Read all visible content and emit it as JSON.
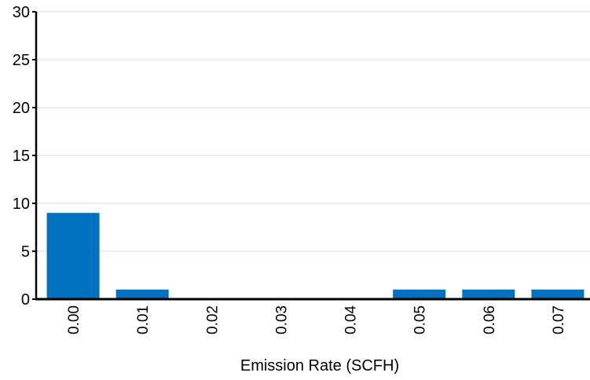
{
  "chart_data": {
    "type": "bar",
    "title": "",
    "xlabel": "Emission Rate (SCFH)",
    "ylabel": "",
    "categories": [
      "0.00",
      "0.01",
      "0.02",
      "0.03",
      "0.04",
      "0.05",
      "0.06",
      "0.07"
    ],
    "values": [
      9,
      1,
      0,
      0,
      0,
      1,
      1,
      1
    ],
    "ylim": [
      0,
      30
    ],
    "yticks": [
      "0",
      "5",
      "10",
      "15",
      "20",
      "25",
      "30"
    ],
    "grid": true,
    "legend": "none",
    "bar_color": "#0070c0",
    "grid_color": "#d9d9d9",
    "axis_color": "#000000"
  }
}
